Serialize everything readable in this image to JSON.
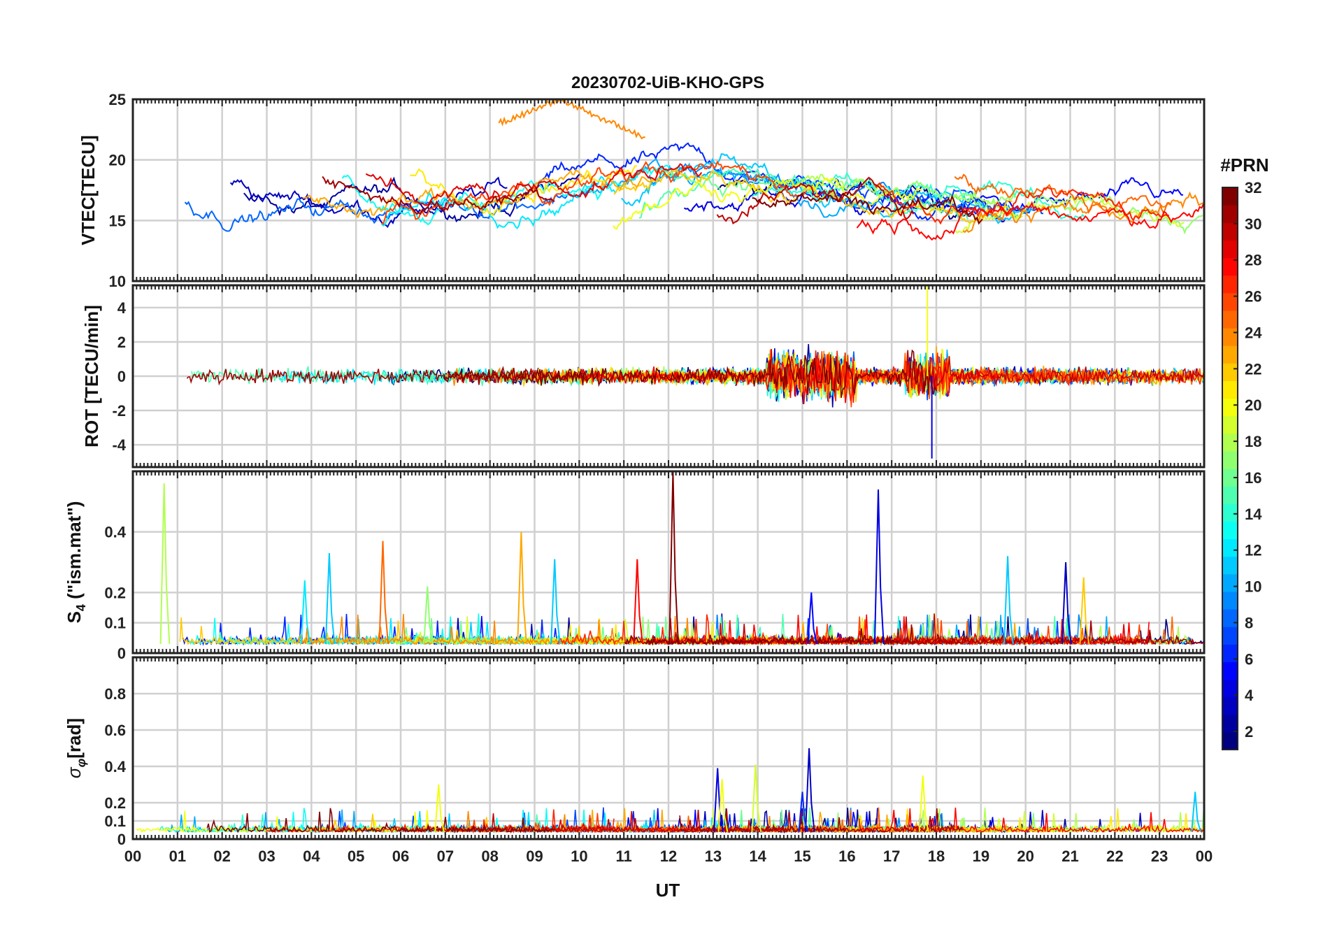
{
  "chart_data": {
    "type": "line",
    "title": "20230702-UiB-KHO-GPS",
    "xlabel": "UT",
    "x_ticks": [
      "00",
      "01",
      "02",
      "03",
      "04",
      "05",
      "06",
      "07",
      "08",
      "09",
      "10",
      "11",
      "12",
      "13",
      "14",
      "15",
      "16",
      "17",
      "18",
      "19",
      "20",
      "21",
      "22",
      "23",
      "00"
    ],
    "xlim_hours": [
      0,
      24
    ],
    "colorbar": {
      "title": "#PRN",
      "range": [
        1,
        32
      ],
      "tick_labels": [
        "2",
        "4",
        "6",
        "8",
        "10",
        "12",
        "14",
        "16",
        "18",
        "20",
        "22",
        "24",
        "26",
        "28",
        "30",
        "32"
      ],
      "colormap": "jet"
    },
    "panels": [
      {
        "id": "vtec",
        "ylabel": "VTEC[TECU]",
        "ylim": [
          10,
          25
        ],
        "y_ticks": [
          10,
          15,
          20,
          25
        ],
        "y_tick_labels": [
          "10",
          "15",
          "20",
          "25"
        ],
        "series_summary": "multi-PRN VTEC tracks mostly between 13 and 20 TECU, peaking near 24-25 TECU around 09-11 UT",
        "peak_value": 25,
        "peak_hour": 9.5
      },
      {
        "id": "rot",
        "ylabel": "ROT [TECU/min]",
        "ylim": [
          -5.3,
          5.3
        ],
        "y_ticks": [
          -4,
          -2,
          0,
          2,
          4
        ],
        "y_tick_labels": [
          "-4",
          "-2",
          "0",
          "2",
          "4"
        ],
        "series_summary": "rate of TEC fluctuating around 0, enhanced around 14-16 UT and 17-18 UT",
        "max_value": 5.3,
        "min_value": -4.8,
        "extreme_hour": 17.8
      },
      {
        "id": "s4",
        "ylabel": "S4 (\"ism.mat\")",
        "ylabel_main": "S",
        "ylabel_sub": "4",
        "ylabel_rest": " (\"ism.mat\")",
        "ylim": [
          0,
          0.6
        ],
        "y_ticks": [
          0,
          0.1,
          0.2,
          0.4
        ],
        "y_tick_labels": [
          "0",
          "0.1",
          "0.2",
          "0.4"
        ],
        "spikes": [
          {
            "hour": 0.7,
            "value": 0.56,
            "prn": 18
          },
          {
            "hour": 3.85,
            "value": 0.24,
            "prn": 12
          },
          {
            "hour": 4.4,
            "value": 0.33,
            "prn": 11
          },
          {
            "hour": 5.6,
            "value": 0.37,
            "prn": 25
          },
          {
            "hour": 6.6,
            "value": 0.22,
            "prn": 17
          },
          {
            "hour": 8.7,
            "value": 0.4,
            "prn": 23
          },
          {
            "hour": 9.45,
            "value": 0.31,
            "prn": 11
          },
          {
            "hour": 11.3,
            "value": 0.31,
            "prn": 28
          },
          {
            "hour": 12.1,
            "value": 0.6,
            "prn": 32
          },
          {
            "hour": 15.2,
            "value": 0.2,
            "prn": 5
          },
          {
            "hour": 16.7,
            "value": 0.54,
            "prn": 4
          },
          {
            "hour": 19.6,
            "value": 0.32,
            "prn": 11
          },
          {
            "hour": 20.9,
            "value": 0.3,
            "prn": 3
          },
          {
            "hour": 21.3,
            "value": 0.25,
            "prn": 22
          }
        ]
      },
      {
        "id": "sigma_phi",
        "ylabel": "σφ[rad]",
        "ylabel_main": "σ",
        "ylabel_sub": "φ",
        "ylabel_rest": "[rad]",
        "ylim": [
          0,
          1
        ],
        "y_ticks": [
          0,
          0.1,
          0.2,
          0.4,
          0.6,
          0.8
        ],
        "y_tick_labels": [
          "0",
          "0.1",
          "0.2",
          "0.4",
          "0.6",
          "0.8"
        ],
        "spikes": [
          {
            "hour": 6.85,
            "value": 0.3,
            "prn": 20
          },
          {
            "hour": 13.1,
            "value": 0.39,
            "prn": 4
          },
          {
            "hour": 13.2,
            "value": 0.33,
            "prn": 20
          },
          {
            "hour": 13.95,
            "value": 0.41,
            "prn": 19
          },
          {
            "hour": 15.15,
            "value": 0.5,
            "prn": 3
          },
          {
            "hour": 15.0,
            "value": 0.26,
            "prn": 6
          },
          {
            "hour": 17.7,
            "value": 0.35,
            "prn": 20
          },
          {
            "hour": 23.8,
            "value": 0.26,
            "prn": 11
          }
        ]
      }
    ]
  }
}
